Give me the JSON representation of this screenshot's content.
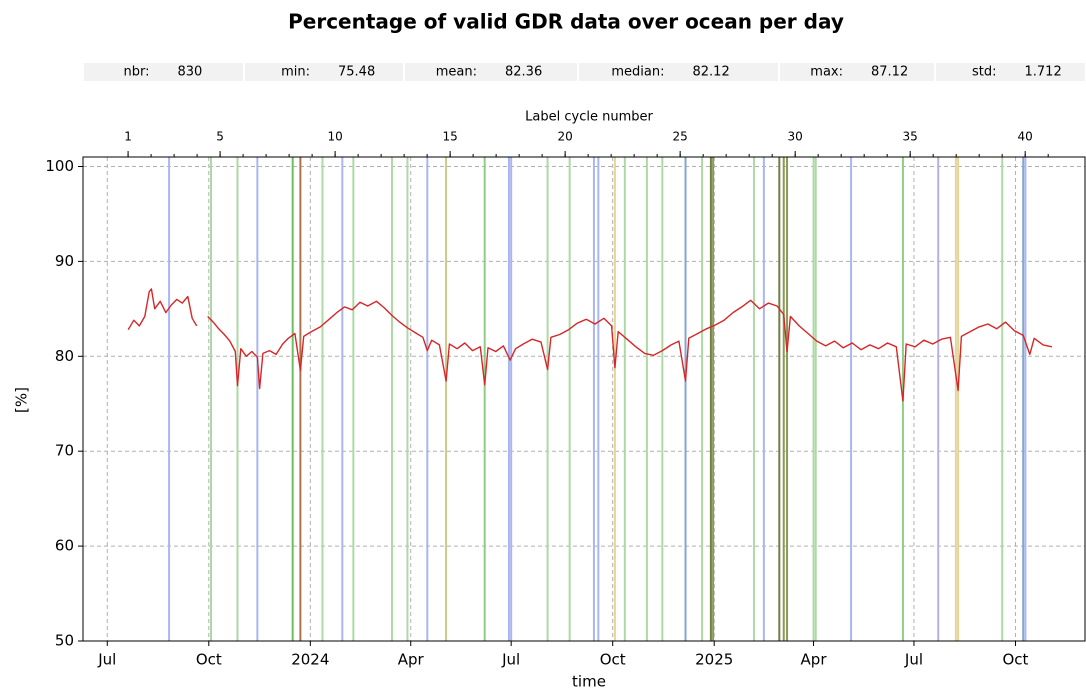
{
  "chart_data": {
    "type": "line",
    "title": "Percentage of valid GDR data over ocean per day",
    "stats": [
      {
        "label": "nbr:",
        "value": 830
      },
      {
        "label": "min:",
        "value": 75.48
      },
      {
        "label": "mean:",
        "value": 82.36
      },
      {
        "label": "median:",
        "value": 82.12
      },
      {
        "label": "max:",
        "value": 87.12
      },
      {
        "label": "std:",
        "value": 1.712
      }
    ],
    "xlabel": "time",
    "ylabel": "[%]",
    "x2label": "Label cycle number",
    "xlim": [
      "2023-06-09",
      "2025-12-03"
    ],
    "xticks": [
      {
        "value": "2023-07-01",
        "label": "Jul"
      },
      {
        "value": "2023-10-01",
        "label": "Oct"
      },
      {
        "value": "2024-01-01",
        "label": "2024"
      },
      {
        "value": "2024-04-01",
        "label": "Apr"
      },
      {
        "value": "2024-07-01",
        "label": "Jul"
      },
      {
        "value": "2024-10-01",
        "label": "Oct"
      },
      {
        "value": "2025-01-01",
        "label": "2025"
      },
      {
        "value": "2025-04-01",
        "label": "Apr"
      },
      {
        "value": "2025-07-01",
        "label": "Jul"
      },
      {
        "value": "2025-10-01",
        "label": "Oct"
      }
    ],
    "ylim": [
      50,
      101
    ],
    "yticks": [
      50,
      60,
      70,
      80,
      90,
      100
    ],
    "x2lim": [
      -0.96,
      42.6
    ],
    "x2ticks": [
      1,
      5,
      10,
      15,
      20,
      25,
      30,
      35,
      40
    ],
    "x2minorticks": [
      1,
      2,
      3,
      4,
      5,
      6,
      7,
      8,
      9,
      10,
      11,
      12,
      13,
      14,
      15,
      16,
      17,
      18,
      19,
      20,
      21,
      22,
      23,
      24,
      25,
      26,
      27,
      28,
      29,
      30,
      31,
      32,
      33,
      34,
      35,
      36,
      37,
      38,
      39,
      40,
      41
    ],
    "grid": true,
    "events": [
      {
        "date": "2023-08-26",
        "color": "#a9b6f2"
      },
      {
        "date": "2023-10-03",
        "color": "#acd9a4"
      },
      {
        "date": "2023-10-27",
        "color": "#acd9a4"
      },
      {
        "date": "2023-11-14",
        "color": "#a9b6f2"
      },
      {
        "date": "2023-12-16",
        "color": "#6cbf5f"
      },
      {
        "date": "2023-12-23",
        "color": "#b0714b"
      },
      {
        "date": "2024-01-12",
        "color": "#acd9a4"
      },
      {
        "date": "2024-01-30",
        "color": "#a9b6f2"
      },
      {
        "date": "2024-02-09",
        "color": "#acd9a4"
      },
      {
        "date": "2024-03-15",
        "color": "#acd9a4"
      },
      {
        "date": "2024-03-29",
        "color": "#acd9a4"
      },
      {
        "date": "2024-04-16",
        "color": "#a9b6f2"
      },
      {
        "date": "2024-05-03",
        "color": "#cfc88a"
      },
      {
        "date": "2024-06-07",
        "color": "#8fcc84"
      },
      {
        "date": "2024-06-29",
        "color": "#a9b6f2"
      },
      {
        "date": "2024-07-01",
        "color": "#a9b6f2"
      },
      {
        "date": "2024-08-03",
        "color": "#acd9a4"
      },
      {
        "date": "2024-08-23",
        "color": "#acd9a4"
      },
      {
        "date": "2024-09-14",
        "color": "#a9b6f2"
      },
      {
        "date": "2024-09-18",
        "color": "#a9b6f2"
      },
      {
        "date": "2024-10-03",
        "color": "#e6d59a"
      },
      {
        "date": "2024-10-12",
        "color": "#acd9a4"
      },
      {
        "date": "2024-11-01",
        "color": "#acd9a4"
      },
      {
        "date": "2024-11-15",
        "color": "#acd9a4"
      },
      {
        "date": "2024-12-06",
        "color": "#86a6cc"
      },
      {
        "date": "2024-12-21",
        "color": "#acd9a4"
      },
      {
        "date": "2024-12-29",
        "color": "#6f7f45"
      },
      {
        "date": "2024-12-31",
        "color": "#8a9a55"
      },
      {
        "date": "2025-02-06",
        "color": "#acd9a4"
      },
      {
        "date": "2025-02-15",
        "color": "#a9b6f2"
      },
      {
        "date": "2025-03-01",
        "color": "#6f7f45"
      },
      {
        "date": "2025-03-05",
        "color": "#8a9a55"
      },
      {
        "date": "2025-03-08",
        "color": "#8a9a55"
      },
      {
        "date": "2025-04-01",
        "color": "#acd9a4"
      },
      {
        "date": "2025-04-03",
        "color": "#acd9a4"
      },
      {
        "date": "2025-05-05",
        "color": "#a9b6f2"
      },
      {
        "date": "2025-06-21",
        "color": "#8fcc84"
      },
      {
        "date": "2025-07-23",
        "color": "#b9b0e6"
      },
      {
        "date": "2025-08-08",
        "color": "#e6d59a"
      },
      {
        "date": "2025-08-10",
        "color": "#e6d59a"
      },
      {
        "date": "2025-09-19",
        "color": "#acd9a4"
      },
      {
        "date": "2025-10-08",
        "color": "#86a6cc"
      },
      {
        "date": "2025-10-10",
        "color": "#a9b6f2"
      }
    ],
    "x": [
      "2023-07-20",
      "2023-07-25",
      "2023-07-30",
      "2023-08-04",
      "2023-08-08",
      "2023-08-10",
      "2023-08-13",
      "2023-08-18",
      "2023-08-23",
      "2023-08-28",
      "2023-09-02",
      "2023-09-07",
      "2023-09-12",
      "2023-09-16",
      "2023-09-20",
      "2023-09-25",
      "2023-09-30",
      "2023-10-05",
      "2023-10-10",
      "2023-10-15",
      "2023-10-20",
      "2023-10-25",
      "2023-10-27",
      "2023-10-30",
      "2023-11-04",
      "2023-11-09",
      "2023-11-14",
      "2023-11-16",
      "2023-11-19",
      "2023-11-25",
      "2023-12-01",
      "2023-12-07",
      "2023-12-12",
      "2023-12-18",
      "2023-12-23",
      "2023-12-26",
      "2024-01-02",
      "2024-01-10",
      "2024-01-18",
      "2024-01-25",
      "2024-02-01",
      "2024-02-08",
      "2024-02-15",
      "2024-02-22",
      "2024-03-01",
      "2024-03-08",
      "2024-03-15",
      "2024-03-22",
      "2024-03-29",
      "2024-04-05",
      "2024-04-12",
      "2024-04-16",
      "2024-04-20",
      "2024-04-27",
      "2024-05-03",
      "2024-05-06",
      "2024-05-13",
      "2024-05-20",
      "2024-05-27",
      "2024-06-03",
      "2024-06-07",
      "2024-06-10",
      "2024-06-17",
      "2024-06-24",
      "2024-06-30",
      "2024-07-05",
      "2024-07-12",
      "2024-07-20",
      "2024-07-28",
      "2024-08-03",
      "2024-08-06",
      "2024-08-14",
      "2024-08-22",
      "2024-08-30",
      "2024-09-07",
      "2024-09-15",
      "2024-09-23",
      "2024-09-30",
      "2024-10-03",
      "2024-10-06",
      "2024-10-14",
      "2024-10-22",
      "2024-10-30",
      "2024-11-07",
      "2024-11-15",
      "2024-11-23",
      "2024-11-30",
      "2024-12-06",
      "2024-12-09",
      "2024-12-17",
      "2024-12-25",
      "2025-01-02",
      "2025-01-10",
      "2025-01-18",
      "2025-01-26",
      "2025-02-03",
      "2025-02-11",
      "2025-02-19",
      "2025-02-27",
      "2025-03-05",
      "2025-03-08",
      "2025-03-11",
      "2025-03-19",
      "2025-03-27",
      "2025-04-04",
      "2025-04-12",
      "2025-04-20",
      "2025-04-28",
      "2025-05-06",
      "2025-05-14",
      "2025-05-22",
      "2025-05-30",
      "2025-06-07",
      "2025-06-15",
      "2025-06-21",
      "2025-06-24",
      "2025-07-02",
      "2025-07-10",
      "2025-07-18",
      "2025-07-26",
      "2025-08-03",
      "2025-08-10",
      "2025-08-13",
      "2025-08-21",
      "2025-08-29",
      "2025-09-06",
      "2025-09-14",
      "2025-09-22",
      "2025-09-30",
      "2025-10-08",
      "2025-10-14",
      "2025-10-18",
      "2025-10-26",
      "2025-11-03"
    ],
    "series": [
      {
        "color": "#d62728",
        "values": [
          82.8,
          83.8,
          83.2,
          84.2,
          86.8,
          87.1,
          85.0,
          85.8,
          84.6,
          85.4,
          86.0,
          85.6,
          86.3,
          84.0,
          83.2,
          null,
          84.2,
          83.6,
          82.9,
          82.3,
          81.6,
          80.5,
          76.9,
          80.8,
          80.0,
          80.5,
          79.9,
          76.6,
          80.3,
          80.6,
          80.2,
          81.3,
          81.9,
          82.4,
          78.5,
          82.1,
          82.6,
          83.1,
          83.9,
          84.6,
          85.2,
          84.9,
          85.7,
          85.3,
          85.8,
          85.1,
          84.3,
          83.6,
          83.0,
          82.5,
          82.0,
          80.6,
          81.7,
          81.2,
          77.4,
          81.3,
          80.8,
          81.4,
          80.6,
          81.0,
          77.0,
          80.9,
          80.5,
          81.1,
          79.6,
          80.8,
          81.3,
          81.8,
          81.5,
          78.6,
          82.0,
          82.3,
          82.8,
          83.5,
          83.9,
          83.4,
          84.0,
          83.2,
          78.8,
          82.6,
          81.8,
          81.0,
          80.3,
          80.1,
          80.6,
          81.2,
          81.6,
          77.4,
          81.9,
          82.4,
          82.9,
          83.3,
          83.8,
          84.6,
          85.2,
          85.9,
          85.0,
          85.6,
          85.3,
          84.4,
          80.5,
          84.2,
          83.2,
          82.4,
          81.6,
          81.1,
          81.6,
          80.9,
          81.4,
          80.7,
          81.2,
          80.8,
          81.4,
          81.0,
          75.3,
          81.3,
          81.0,
          81.7,
          81.3,
          81.8,
          82.0,
          76.4,
          82.1,
          82.6,
          83.1,
          83.4,
          82.9,
          83.6,
          82.7,
          82.2,
          80.2,
          81.9,
          81.2,
          81.0
        ]
      }
    ]
  }
}
